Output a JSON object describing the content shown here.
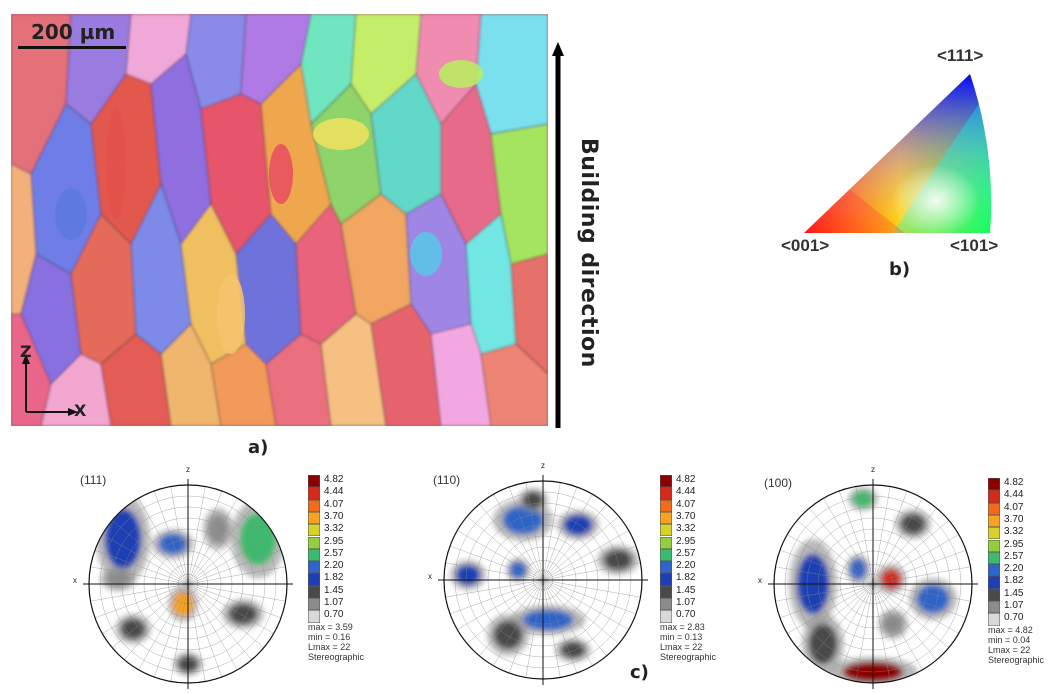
{
  "panel_a": {
    "scale_bar_label": "200 µm",
    "axis_z": "Z",
    "axis_x": "X",
    "building_direction": "Building direction",
    "panel_label": "a)"
  },
  "panel_b": {
    "corner_111": "<111>",
    "corner_001": "<001>",
    "corner_101": "<101>",
    "panel_label": "b)"
  },
  "panel_c": {
    "panel_label": "c)",
    "legend_values": [
      "4.82",
      "4.44",
      "4.07",
      "3.70",
      "3.32",
      "2.95",
      "2.57",
      "2.20",
      "1.82",
      "1.45",
      "1.07",
      "0.70"
    ],
    "legend_colors": [
      "#8b0000",
      "#d42a1a",
      "#f26a1b",
      "#f8a21f",
      "#d8d12a",
      "#92cf3d",
      "#3cba6d",
      "#2f64c8",
      "#1f3fb3",
      "#4a4a4a",
      "#8c8c8c",
      "#d9d9d9"
    ],
    "figures": [
      {
        "title": "(111)",
        "z": "z",
        "x": "x",
        "max": "max = 3.59",
        "min": "min = 0.16",
        "lmax": "Lmax = 22",
        "proj": "Stereographic"
      },
      {
        "title": "(110)",
        "z": "z",
        "x": "x",
        "max": "max = 2.83",
        "min": "min = 0.13",
        "lmax": "Lmax = 22",
        "proj": "Stereographic"
      },
      {
        "title": "(100)",
        "z": "z",
        "x": "x",
        "max": "max = 4.82",
        "min": "min = 0.04",
        "lmax": "Lmax = 22",
        "proj": "Stereographic"
      }
    ]
  }
}
